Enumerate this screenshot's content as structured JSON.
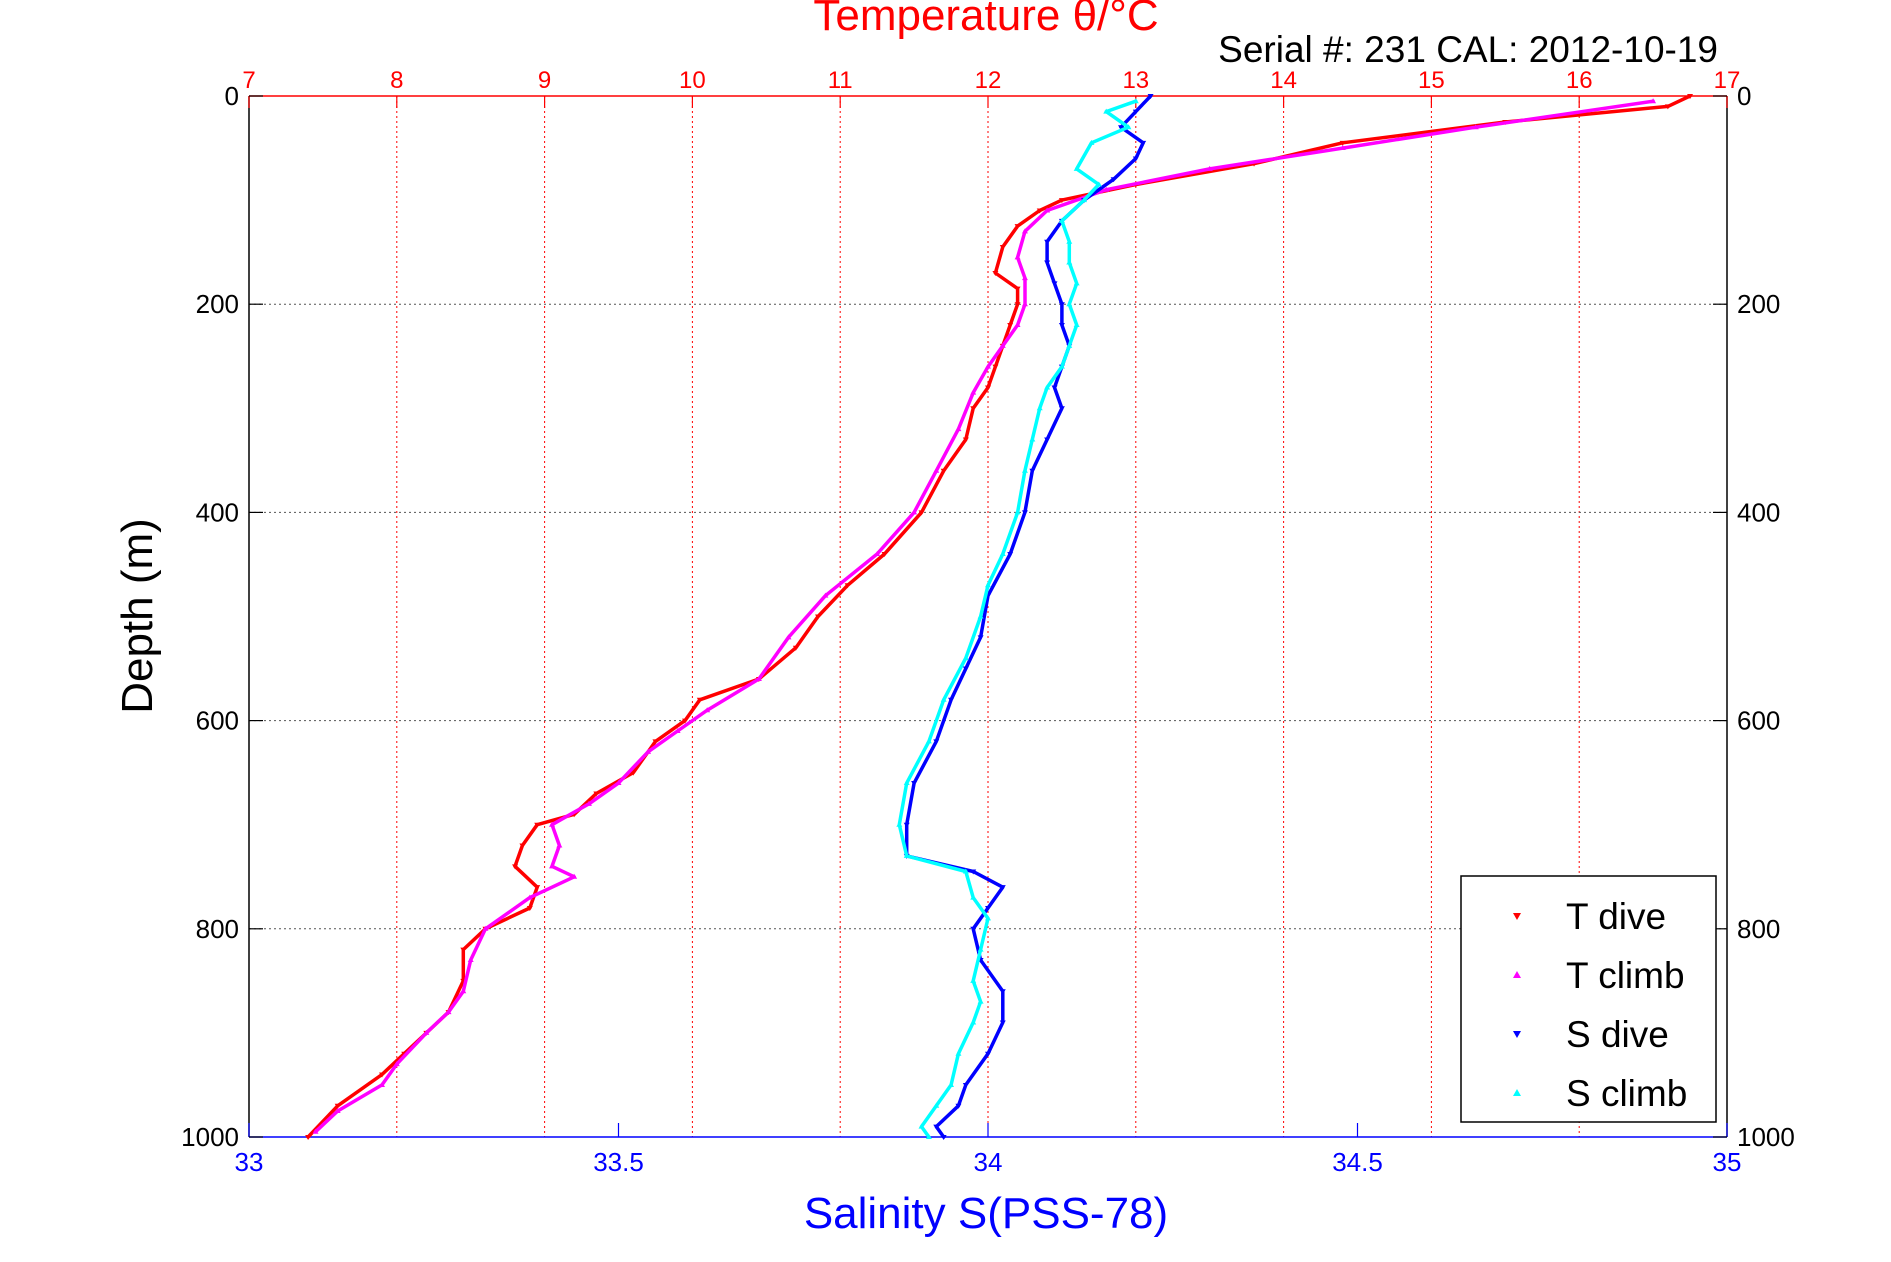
{
  "chart_data": {
    "type": "scatter",
    "title": "Temperature θ/°C",
    "subtitle": "Serial #: 231  CAL: 2012-10-19",
    "xlabel": "Salinity S(PSS-78)",
    "ylabel": "Depth (m)",
    "x_top": {
      "range": [
        7,
        17
      ],
      "ticks": [
        "7",
        "8",
        "9",
        "10",
        "11",
        "12",
        "13",
        "14",
        "15",
        "16",
        "17"
      ],
      "color": "#ff0000"
    },
    "x_bottom": {
      "range": [
        33,
        35
      ],
      "ticks": [
        "33",
        "33.5",
        "34",
        "34.5",
        "35"
      ],
      "color": "#0000ff"
    },
    "y": {
      "range": [
        0,
        1000
      ],
      "reversed": true,
      "ticks": [
        "0",
        "200",
        "400",
        "600",
        "800",
        "1000"
      ]
    },
    "grid": true,
    "legend_position": "bottom-right",
    "series": [
      {
        "name": "T dive",
        "axis": "temperature",
        "color": "#ff0000",
        "points": [
          [
            16.75,
            0
          ],
          [
            16.6,
            10
          ],
          [
            15.5,
            25
          ],
          [
            14.4,
            45
          ],
          [
            13.8,
            65
          ],
          [
            13.0,
            85
          ],
          [
            12.5,
            100
          ],
          [
            12.35,
            110
          ],
          [
            12.2,
            125
          ],
          [
            12.1,
            145
          ],
          [
            12.05,
            170
          ],
          [
            12.2,
            185
          ],
          [
            12.2,
            200
          ],
          [
            12.15,
            220
          ],
          [
            12.1,
            240
          ],
          [
            12.05,
            260
          ],
          [
            12.0,
            280
          ],
          [
            11.9,
            300
          ],
          [
            11.85,
            330
          ],
          [
            11.7,
            360
          ],
          [
            11.55,
            400
          ],
          [
            11.3,
            440
          ],
          [
            11.05,
            470
          ],
          [
            10.85,
            500
          ],
          [
            10.7,
            530
          ],
          [
            10.45,
            560
          ],
          [
            10.05,
            580
          ],
          [
            9.95,
            600
          ],
          [
            9.75,
            620
          ],
          [
            9.6,
            650
          ],
          [
            9.35,
            670
          ],
          [
            9.2,
            690
          ],
          [
            8.95,
            700
          ],
          [
            8.85,
            720
          ],
          [
            8.8,
            740
          ],
          [
            8.95,
            760
          ],
          [
            8.9,
            780
          ],
          [
            8.6,
            800
          ],
          [
            8.45,
            820
          ],
          [
            8.45,
            850
          ],
          [
            8.35,
            880
          ],
          [
            8.2,
            900
          ],
          [
            8.05,
            920
          ],
          [
            7.9,
            940
          ],
          [
            7.6,
            970
          ],
          [
            7.4,
            1000
          ]
        ]
      },
      {
        "name": "T climb",
        "axis": "temperature",
        "color": "#ff00ff",
        "points": [
          [
            16.5,
            5
          ],
          [
            15.3,
            30
          ],
          [
            14.4,
            50
          ],
          [
            13.5,
            70
          ],
          [
            12.8,
            90
          ],
          [
            12.4,
            110
          ],
          [
            12.25,
            130
          ],
          [
            12.2,
            155
          ],
          [
            12.25,
            175
          ],
          [
            12.25,
            200
          ],
          [
            12.2,
            220
          ],
          [
            12.1,
            240
          ],
          [
            12.0,
            260
          ],
          [
            11.9,
            285
          ],
          [
            11.8,
            320
          ],
          [
            11.65,
            360
          ],
          [
            11.5,
            400
          ],
          [
            11.25,
            440
          ],
          [
            10.9,
            480
          ],
          [
            10.65,
            520
          ],
          [
            10.45,
            560
          ],
          [
            10.1,
            590
          ],
          [
            9.9,
            610
          ],
          [
            9.7,
            630
          ],
          [
            9.5,
            660
          ],
          [
            9.3,
            680
          ],
          [
            9.05,
            700
          ],
          [
            9.1,
            720
          ],
          [
            9.05,
            740
          ],
          [
            9.2,
            750
          ],
          [
            8.9,
            770
          ],
          [
            8.6,
            800
          ],
          [
            8.5,
            830
          ],
          [
            8.45,
            860
          ],
          [
            8.35,
            880
          ],
          [
            8.2,
            900
          ],
          [
            8.0,
            930
          ],
          [
            7.9,
            950
          ],
          [
            7.6,
            975
          ],
          [
            7.45,
            995
          ]
        ]
      },
      {
        "name": "S dive",
        "axis": "salinity",
        "color": "#0000ff",
        "points": [
          [
            34.22,
            0
          ],
          [
            34.2,
            15
          ],
          [
            34.18,
            30
          ],
          [
            34.21,
            45
          ],
          [
            34.2,
            60
          ],
          [
            34.17,
            80
          ],
          [
            34.13,
            100
          ],
          [
            34.1,
            120
          ],
          [
            34.08,
            140
          ],
          [
            34.08,
            160
          ],
          [
            34.09,
            180
          ],
          [
            34.1,
            200
          ],
          [
            34.1,
            220
          ],
          [
            34.11,
            240
          ],
          [
            34.1,
            260
          ],
          [
            34.09,
            280
          ],
          [
            34.1,
            300
          ],
          [
            34.08,
            330
          ],
          [
            34.06,
            360
          ],
          [
            34.05,
            400
          ],
          [
            34.03,
            440
          ],
          [
            34.0,
            480
          ],
          [
            33.99,
            520
          ],
          [
            33.97,
            550
          ],
          [
            33.95,
            580
          ],
          [
            33.93,
            620
          ],
          [
            33.9,
            660
          ],
          [
            33.89,
            700
          ],
          [
            33.89,
            730
          ],
          [
            33.98,
            745
          ],
          [
            34.02,
            760
          ],
          [
            34.0,
            780
          ],
          [
            33.98,
            800
          ],
          [
            33.99,
            830
          ],
          [
            34.02,
            860
          ],
          [
            34.02,
            890
          ],
          [
            34.0,
            920
          ],
          [
            33.97,
            950
          ],
          [
            33.96,
            970
          ],
          [
            33.93,
            990
          ],
          [
            33.94,
            1000
          ]
        ]
      },
      {
        "name": "S climb",
        "axis": "salinity",
        "color": "#00ffff",
        "points": [
          [
            34.2,
            5
          ],
          [
            34.16,
            15
          ],
          [
            34.19,
            30
          ],
          [
            34.14,
            45
          ],
          [
            34.12,
            70
          ],
          [
            34.15,
            85
          ],
          [
            34.13,
            100
          ],
          [
            34.1,
            120
          ],
          [
            34.11,
            140
          ],
          [
            34.11,
            160
          ],
          [
            34.12,
            180
          ],
          [
            34.11,
            200
          ],
          [
            34.12,
            220
          ],
          [
            34.11,
            240
          ],
          [
            34.1,
            260
          ],
          [
            34.08,
            280
          ],
          [
            34.07,
            300
          ],
          [
            34.06,
            330
          ],
          [
            34.05,
            360
          ],
          [
            34.04,
            400
          ],
          [
            34.02,
            440
          ],
          [
            34.0,
            470
          ],
          [
            33.99,
            500
          ],
          [
            33.97,
            540
          ],
          [
            33.94,
            580
          ],
          [
            33.92,
            620
          ],
          [
            33.89,
            660
          ],
          [
            33.88,
            700
          ],
          [
            33.89,
            730
          ],
          [
            33.97,
            745
          ],
          [
            33.98,
            770
          ],
          [
            34.0,
            790
          ],
          [
            33.99,
            820
          ],
          [
            33.98,
            850
          ],
          [
            33.99,
            870
          ],
          [
            33.98,
            890
          ],
          [
            33.96,
            920
          ],
          [
            33.95,
            950
          ],
          [
            33.93,
            970
          ],
          [
            33.91,
            990
          ],
          [
            33.92,
            1000
          ]
        ]
      }
    ]
  }
}
